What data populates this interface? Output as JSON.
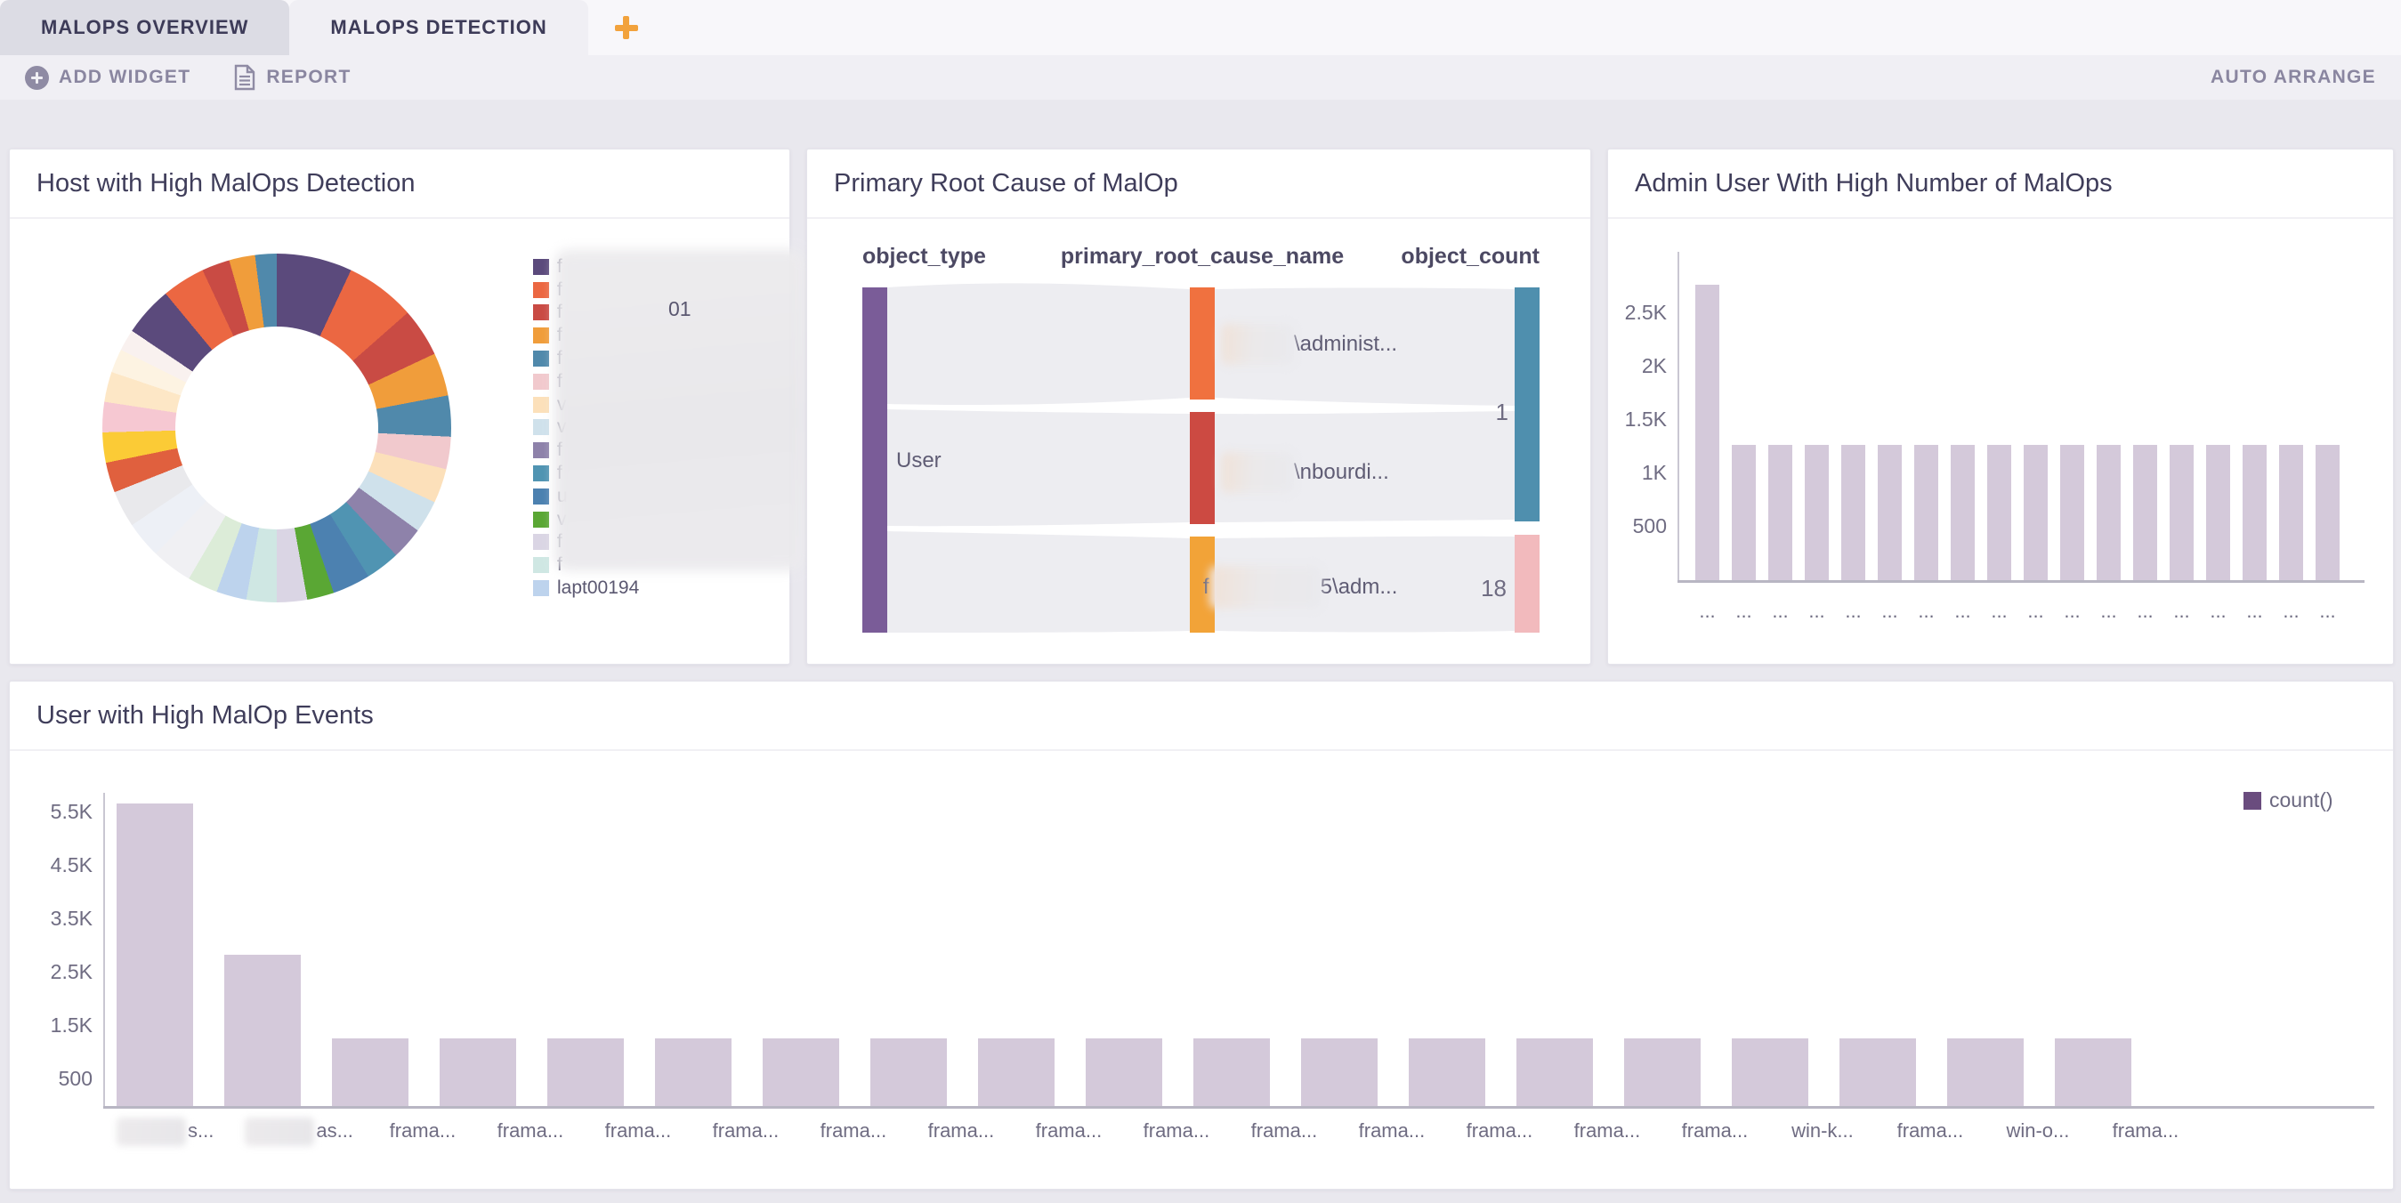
{
  "tab_bar": {
    "tabs": [
      {
        "label": "MALOPS OVERVIEW",
        "active": false
      },
      {
        "label": "MALOPS DETECTION",
        "active": true
      }
    ]
  },
  "toolbar": {
    "add_widget": "ADD WIDGET",
    "report": "REPORT",
    "auto_arrange": "AUTO ARRANGE"
  },
  "colors": {
    "accent_orange": "#f2a23c",
    "bar_fill": "#d4c9da",
    "count_swatch": "#6a4c7e",
    "ribbon": "#ededf1"
  },
  "donut_widget": {
    "title": "Host with High MalOps Detection",
    "peek_text": "01",
    "legend": [
      {
        "color": "#5b4a7c",
        "label": "f",
        "blurred": true
      },
      {
        "color": "#eb6742",
        "label": "f",
        "blurred": true
      },
      {
        "color": "#c94b44",
        "label": "f",
        "blurred": true
      },
      {
        "color": "#f09d3b",
        "label": "f",
        "blurred": true
      },
      {
        "color": "#5089ab",
        "label": "f",
        "blurred": true
      },
      {
        "color": "#f1c9cd",
        "label": "f",
        "blurred": true
      },
      {
        "color": "#fce0ba",
        "label": "v",
        "blurred": true
      },
      {
        "color": "#cfe1eb",
        "label": "v",
        "blurred": true
      },
      {
        "color": "#8e82aa",
        "label": "f",
        "blurred": true
      },
      {
        "color": "#5094b2",
        "label": "f",
        "blurred": true
      },
      {
        "color": "#4c81b0",
        "label": "u",
        "blurred": true
      },
      {
        "color": "#5aa734",
        "label": "v",
        "blurred": true
      },
      {
        "color": "#dad5e4",
        "label": "f",
        "blurred": true
      },
      {
        "color": "#cfe7e3",
        "label": "f",
        "blurred": true
      },
      {
        "color": "#bdd3ed",
        "label": "lapt00194",
        "blurred": false
      }
    ],
    "segments": [
      {
        "color": "#5b4a7c",
        "value": 7.0
      },
      {
        "color": "#eb6742",
        "value": 6.5
      },
      {
        "color": "#c94b44",
        "value": 4.5
      },
      {
        "color": "#f09d3b",
        "value": 4.0
      },
      {
        "color": "#5089ab",
        "value": 3.8
      },
      {
        "color": "#f1c9cd",
        "value": 3.0
      },
      {
        "color": "#fce0ba",
        "value": 3.2
      },
      {
        "color": "#cfe1eb",
        "value": 3.0
      },
      {
        "color": "#8e82aa",
        "value": 3.0
      },
      {
        "color": "#5094b2",
        "value": 3.2
      },
      {
        "color": "#4c81b0",
        "value": 3.5
      },
      {
        "color": "#5aa734",
        "value": 2.5
      },
      {
        "color": "#dad5e4",
        "value": 2.8
      },
      {
        "color": "#cfe7e3",
        "value": 2.8
      },
      {
        "color": "#bdd3ed",
        "value": 2.8
      },
      {
        "color": "#dcecd8",
        "value": 2.8
      },
      {
        "color": "#f0f0f3",
        "value": 3.8
      },
      {
        "color": "#edf0f6",
        "value": 3.4
      },
      {
        "color": "#e9e9ec",
        "value": 3.4
      },
      {
        "color": "#e0603e",
        "value": 2.8
      },
      {
        "color": "#fbcb36",
        "value": 2.8
      },
      {
        "color": "#f6c8d2",
        "value": 2.8
      },
      {
        "color": "#fde7c6",
        "value": 2.8
      },
      {
        "color": "#fdf3e2",
        "value": 2.2
      },
      {
        "color": "#f9f1ef",
        "value": 2.0
      },
      {
        "color": "#5b4a7c",
        "value": 4.6
      },
      {
        "color": "#eb6742",
        "value": 4.0
      },
      {
        "color": "#c94b44",
        "value": 2.6
      },
      {
        "color": "#f09d3b",
        "value": 2.4
      },
      {
        "color": "#5089ab",
        "value": 2.0
      }
    ]
  },
  "sankey_widget": {
    "title": "Primary Root Cause of MalOp",
    "columns": [
      "object_type",
      "primary_root_cause_name",
      "object_count"
    ],
    "source_node": {
      "label": "User",
      "color": "#7a5c98"
    },
    "mid_nodes": [
      {
        "color": "#f0713f",
        "label": "\\administ...",
        "blurred_prefix": true
      },
      {
        "color": "#cc4a42",
        "label": "\\nbourdi...",
        "blurred_prefix": true
      },
      {
        "color": "#f2a338",
        "label_prefix": "f",
        "label": "5\\adm...",
        "blurred_middle": true
      }
    ],
    "end_nodes": [
      {
        "color": "#4f8fae",
        "count": "1"
      },
      {
        "color": "#f2babd",
        "count": "18"
      }
    ]
  },
  "admin_chart": {
    "title": "Admin User With High Number of MalOps",
    "y_ticks": [
      {
        "label": "2.5K",
        "value": 2500
      },
      {
        "label": "2K",
        "value": 2000
      },
      {
        "label": "1.5K",
        "value": 1500
      },
      {
        "label": "1K",
        "value": 1000
      },
      {
        "label": "500",
        "value": 500
      }
    ],
    "values": [
      2770,
      1270,
      1270,
      1270,
      1270,
      1270,
      1270,
      1270,
      1270,
      1270,
      1270,
      1270,
      1270,
      1270,
      1270,
      1270,
      1270,
      1270
    ],
    "x_labels": [
      "...",
      "...",
      "...",
      "...",
      "...",
      "...",
      "...",
      "...",
      "...",
      "...",
      "...",
      "...",
      "...",
      "...",
      "...",
      "...",
      "...",
      "..."
    ]
  },
  "events_chart": {
    "title": "User with High MalOp Events",
    "legend_label": "count()",
    "y_ticks": [
      {
        "label": "5.5K",
        "value": 5500
      },
      {
        "label": "4.5K",
        "value": 4500
      },
      {
        "label": "3.5K",
        "value": 3500
      },
      {
        "label": "2.5K",
        "value": 2500
      },
      {
        "label": "1.5K",
        "value": 1500
      },
      {
        "label": "500",
        "value": 500
      }
    ],
    "bars": [
      {
        "value": 5670,
        "label": "s...",
        "label_blurred": true
      },
      {
        "value": 2830,
        "label": "as...",
        "label_blurred": true
      },
      {
        "value": 1270,
        "label": "frama..."
      },
      {
        "value": 1270,
        "label": "frama..."
      },
      {
        "value": 1270,
        "label": "frama..."
      },
      {
        "value": 1270,
        "label": "frama..."
      },
      {
        "value": 1270,
        "label": "frama..."
      },
      {
        "value": 1270,
        "label": "frama..."
      },
      {
        "value": 1270,
        "label": "frama..."
      },
      {
        "value": 1270,
        "label": "frama..."
      },
      {
        "value": 1270,
        "label": "frama..."
      },
      {
        "value": 1270,
        "label": "frama..."
      },
      {
        "value": 1270,
        "label": "frama..."
      },
      {
        "value": 1270,
        "label": "frama..."
      },
      {
        "value": 1270,
        "label": "frama..."
      },
      {
        "value": 1270,
        "label": "win-k..."
      },
      {
        "value": 1270,
        "label": "frama..."
      },
      {
        "value": 1270,
        "label": "win-o..."
      },
      {
        "value": 1270,
        "label": "frama..."
      }
    ]
  },
  "chart_data": [
    {
      "type": "pie",
      "title": "Host with High MalOps Detection",
      "note": "donut, 30 slices, legend mostly redacted, last legend entry lapt00194"
    },
    {
      "type": "table",
      "title": "Primary Root Cause of MalOp",
      "note": "sankey User -> 3 root causes -> object_count nodes with counts 1 and 18"
    },
    {
      "type": "bar",
      "title": "Admin User With High Number of MalOps",
      "categories": [
        "..."
      ],
      "values": [
        2770,
        1270
      ],
      "ylim": [
        0,
        3000
      ],
      "note": "1 bar at 2770 then 17 bars at 1270"
    },
    {
      "type": "bar",
      "title": "User with High MalOp Events",
      "values": [
        5670,
        2830,
        1270
      ],
      "ylim": [
        0,
        6000
      ],
      "legend": [
        "count()"
      ],
      "note": "bars 3-19 equal 1270"
    }
  ]
}
